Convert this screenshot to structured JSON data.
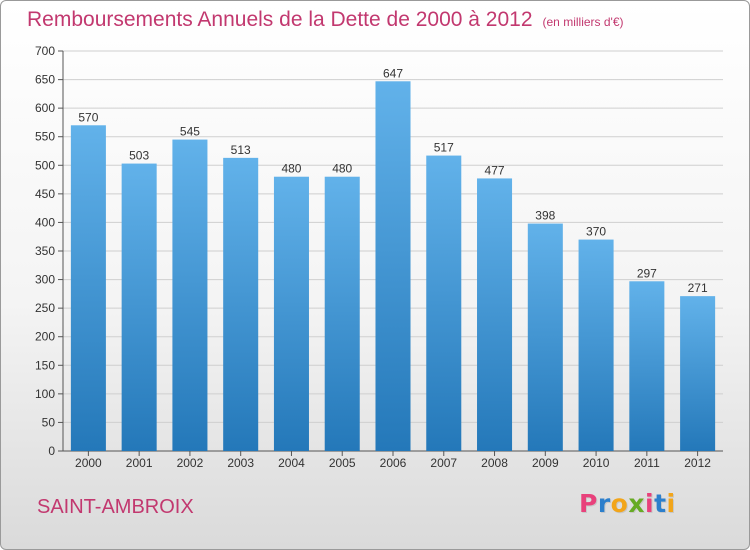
{
  "title": "Remboursements Annuels de la Dette de 2000 à 2012",
  "unit_label": "(en milliers d'€)",
  "city": "SAINT-AMBROIX",
  "logo_text": "Proxiti",
  "logo_colors": [
    "#e8417b",
    "#2c7fcc",
    "#f2a51a",
    "#67ab24",
    "#e8417b",
    "#2c7fcc",
    "#f2a51a"
  ],
  "colors": {
    "title": "#c2386f",
    "bar_top": "#62b2ea",
    "bar_bottom": "#2478b9",
    "grid": "#cfcfcf"
  },
  "chart_data": {
    "type": "bar",
    "title": "Remboursements Annuels de la Dette de 2000 à 2012",
    "xlabel": "",
    "ylabel": "",
    "categories": [
      "2000",
      "2001",
      "2002",
      "2003",
      "2004",
      "2005",
      "2006",
      "2007",
      "2008",
      "2009",
      "2010",
      "2011",
      "2012"
    ],
    "values": [
      570,
      503,
      545,
      513,
      480,
      480,
      647,
      517,
      477,
      398,
      370,
      297,
      271
    ],
    "ylim": [
      0,
      700
    ],
    "yticks": [
      0,
      50,
      100,
      150,
      200,
      250,
      300,
      350,
      400,
      450,
      500,
      550,
      600,
      650,
      700
    ],
    "grid": true,
    "data_labels": true
  }
}
